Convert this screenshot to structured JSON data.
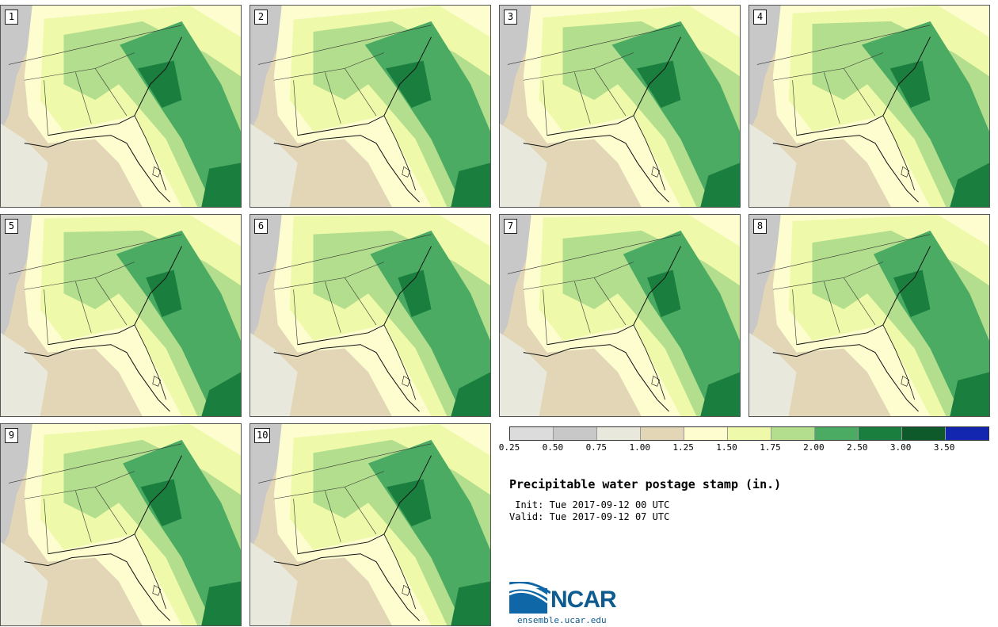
{
  "panels": [
    {
      "label": "1"
    },
    {
      "label": "2"
    },
    {
      "label": "3"
    },
    {
      "label": "4"
    },
    {
      "label": "5"
    },
    {
      "label": "6"
    },
    {
      "label": "7"
    },
    {
      "label": "8"
    },
    {
      "label": "9"
    },
    {
      "label": "10"
    }
  ],
  "legend": {
    "colors": [
      "#dcdcdc",
      "#c8c8c8",
      "#e8e8dc",
      "#e2d6b6",
      "#fdfdd0",
      "#eefaaa",
      "#b2de8e",
      "#4cab62",
      "#1a7e3e",
      "#0e5a2a",
      "#1226b0"
    ],
    "ticks": [
      "0.25",
      "0.50",
      "0.75",
      "1.00",
      "1.25",
      "1.50",
      "1.75",
      "2.00",
      "2.50",
      "3.00",
      "3.50"
    ]
  },
  "title": "Precipitable water postage stamp (in.)",
  "init": " Init: Tue 2017-09-12 00 UTC",
  "valid": "Valid: Tue 2017-09-12 07 UTC",
  "logo": {
    "name": "NCAR",
    "url": "ensemble.ucar.edu"
  }
}
